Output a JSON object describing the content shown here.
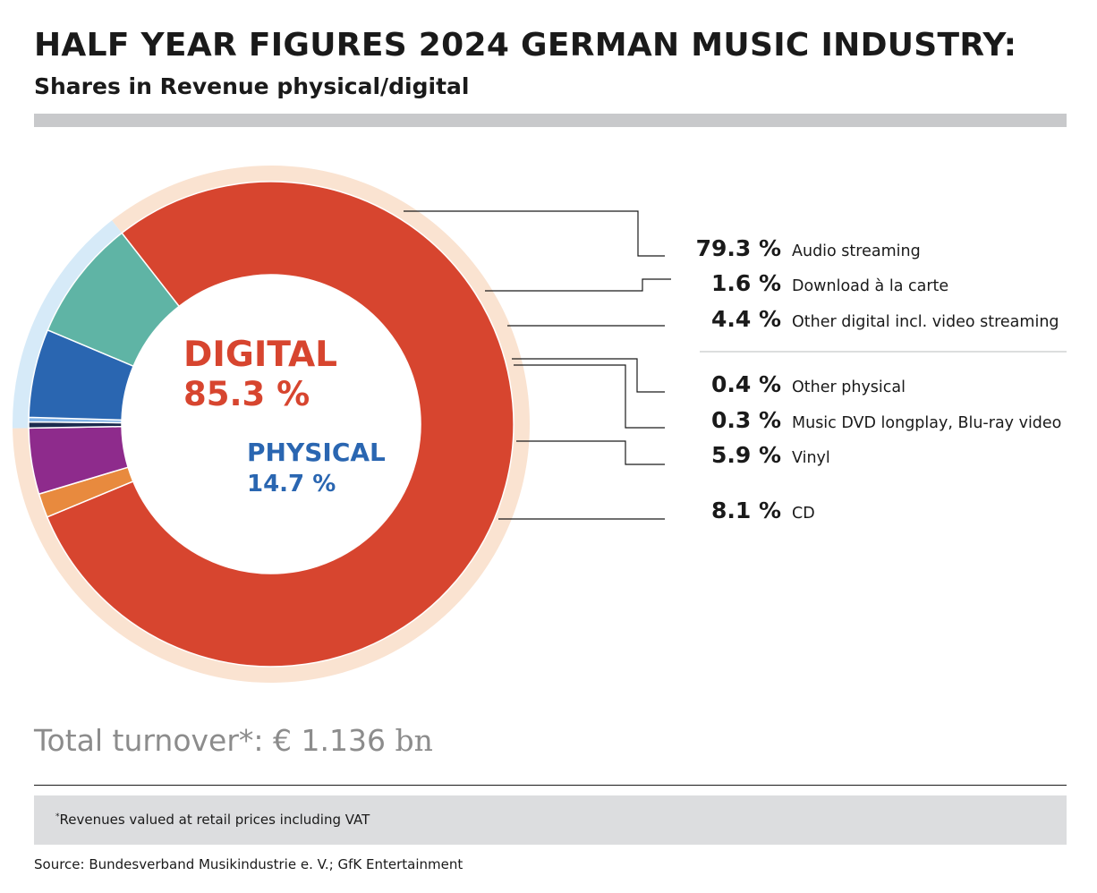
{
  "header": {
    "title": "HALF YEAR FIGURES 2024 GERMAN MUSIC INDUSTRY:",
    "subtitle": "Shares in Revenue physical/digital"
  },
  "chart_data": {
    "type": "pie",
    "style": "donut",
    "groups": [
      {
        "name": "DIGITAL",
        "value_label": "85.3 %",
        "value": 85.3,
        "color": "#d7452f",
        "ring_color": "#fae3d1"
      },
      {
        "name": "PHYSICAL",
        "value_label": "14.7 %",
        "value": 14.7,
        "color": "#2a66b1",
        "ring_color": "#d6eaf8"
      }
    ],
    "slices": [
      {
        "label": "Audio streaming",
        "value": 79.3,
        "value_label": "79.3 %",
        "group": "DIGITAL",
        "color": "#d7452f"
      },
      {
        "label": "Download à la carte",
        "value": 1.6,
        "value_label": "1.6 %",
        "group": "DIGITAL",
        "color": "#e88a3e"
      },
      {
        "label": "Other digital incl. video streaming",
        "value": 4.4,
        "value_label": "4.4 %",
        "group": "DIGITAL",
        "color": "#8e2b8c"
      },
      {
        "label": "Other physical",
        "value": 0.4,
        "value_label": "0.4 %",
        "group": "PHYSICAL",
        "color": "#1c2b4f"
      },
      {
        "label": "Music DVD longplay, Blu-ray video",
        "value": 0.3,
        "value_label": "0.3 %",
        "group": "PHYSICAL",
        "color": "#7fb1e6"
      },
      {
        "label": "Vinyl",
        "value": 5.9,
        "value_label": "5.9 %",
        "group": "PHYSICAL",
        "color": "#2a66b1"
      },
      {
        "label": "CD",
        "value": 8.1,
        "value_label": "8.1 %",
        "group": "PHYSICAL",
        "color": "#5fb4a5"
      }
    ],
    "legend_placement": "right"
  },
  "summary": {
    "total_label": "Total turnover*: € 1.136",
    "total_unit": "bn"
  },
  "footer": {
    "footnote_mark": "*",
    "footnote": "Revenues valued at retail prices including VAT",
    "source": "Source: Bundesverband Musikindustrie e. V.; GfK Entertainment"
  }
}
